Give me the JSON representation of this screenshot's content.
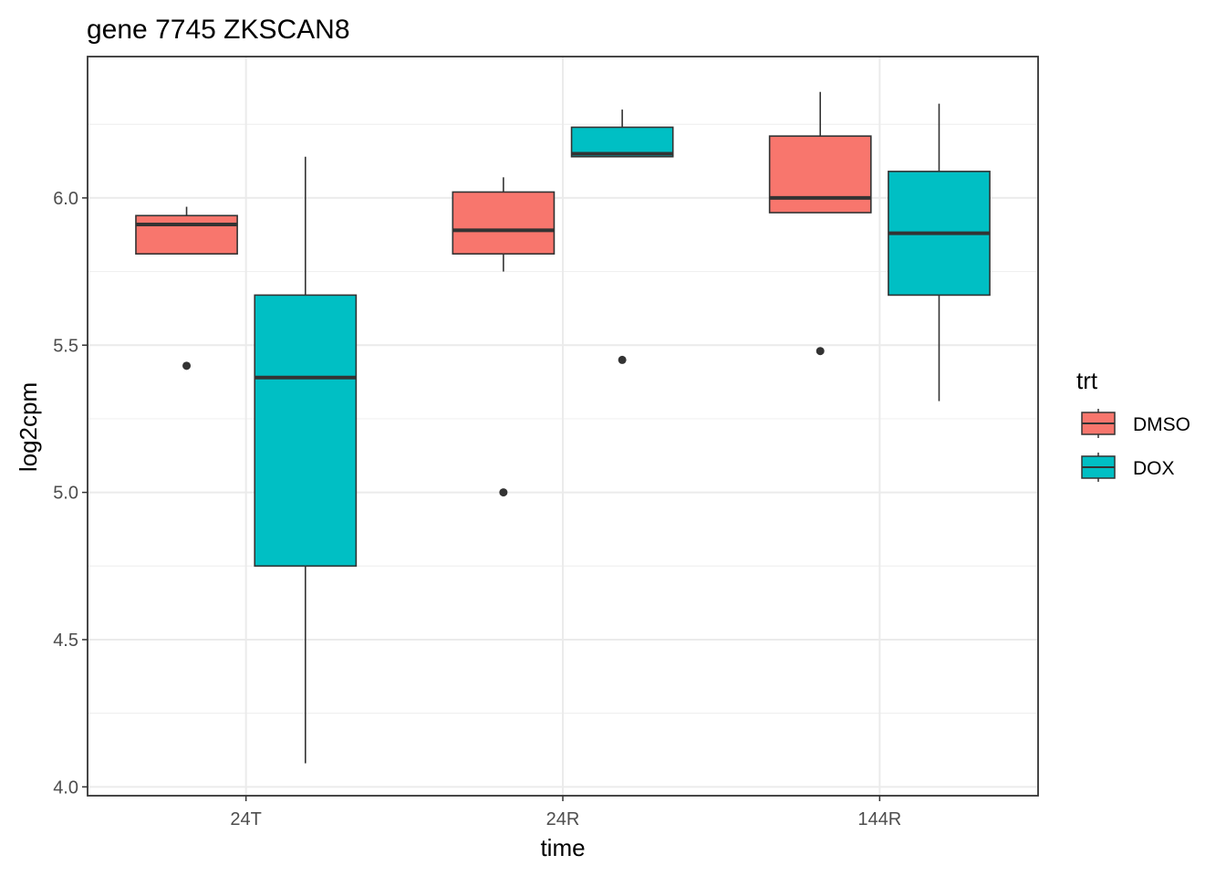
{
  "chart_data": {
    "type": "boxplot",
    "title": "gene 7745 ZKSCAN8",
    "xlabel": "time",
    "ylabel": "log2cpm",
    "categories": [
      "24T",
      "24R",
      "144R"
    ],
    "ylim": [
      3.97,
      6.48
    ],
    "yticks": [
      4.0,
      4.5,
      5.0,
      5.5,
      6.0
    ],
    "ytick_labels": [
      "4.0",
      "4.5",
      "5.0",
      "5.5",
      "6.0"
    ],
    "grid": true,
    "legend": {
      "title": "trt",
      "position": "right",
      "entries": [
        {
          "label": "DMSO",
          "color": "#F8766D"
        },
        {
          "label": "DOX",
          "color": "#00BFC4"
        }
      ]
    },
    "series": [
      {
        "name": "DMSO",
        "color": "#F8766D",
        "boxes": [
          {
            "category": "24T",
            "whisker_low": 5.81,
            "q1": 5.81,
            "median": 5.91,
            "q3": 5.94,
            "whisker_high": 5.97,
            "outliers": [
              5.43
            ]
          },
          {
            "category": "24R",
            "whisker_low": 5.75,
            "q1": 5.81,
            "median": 5.89,
            "q3": 6.02,
            "whisker_high": 6.07,
            "outliers": [
              5.0
            ]
          },
          {
            "category": "144R",
            "whisker_low": 5.95,
            "q1": 5.95,
            "median": 6.0,
            "q3": 6.21,
            "whisker_high": 6.36,
            "outliers": [
              5.48
            ]
          }
        ]
      },
      {
        "name": "DOX",
        "color": "#00BFC4",
        "boxes": [
          {
            "category": "24T",
            "whisker_low": 4.08,
            "q1": 4.75,
            "median": 5.39,
            "q3": 5.67,
            "whisker_high": 6.14,
            "outliers": []
          },
          {
            "category": "24R",
            "whisker_low": 6.14,
            "q1": 6.14,
            "median": 6.15,
            "q3": 6.24,
            "whisker_high": 6.3,
            "outliers": [
              5.45
            ]
          },
          {
            "category": "144R",
            "whisker_low": 5.31,
            "q1": 5.67,
            "median": 5.88,
            "q3": 6.09,
            "whisker_high": 6.32,
            "outliers": []
          }
        ]
      }
    ]
  }
}
